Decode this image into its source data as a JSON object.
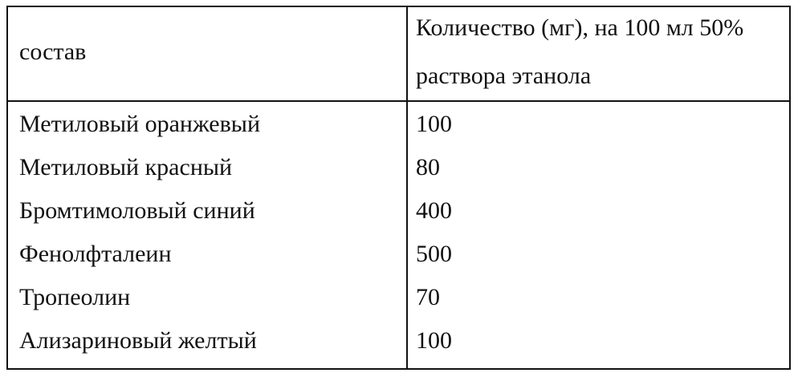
{
  "table": {
    "header": {
      "col1": "состав",
      "col2_line1": "Количество (мг), на 100 мл 50%",
      "col2_line2": "раствора этанола"
    },
    "rows": [
      {
        "name": "Метиловый оранжевый",
        "amount": "100"
      },
      {
        "name": "Метиловый красный",
        "amount": "80"
      },
      {
        "name": "Бромтимоловый  синий",
        "amount": "400"
      },
      {
        "name": "Фенолфталеин",
        "amount": "500"
      },
      {
        "name": "Тропеолин",
        "amount": "70"
      },
      {
        "name": "Ализариновый желтый",
        "amount": "100"
      }
    ]
  }
}
